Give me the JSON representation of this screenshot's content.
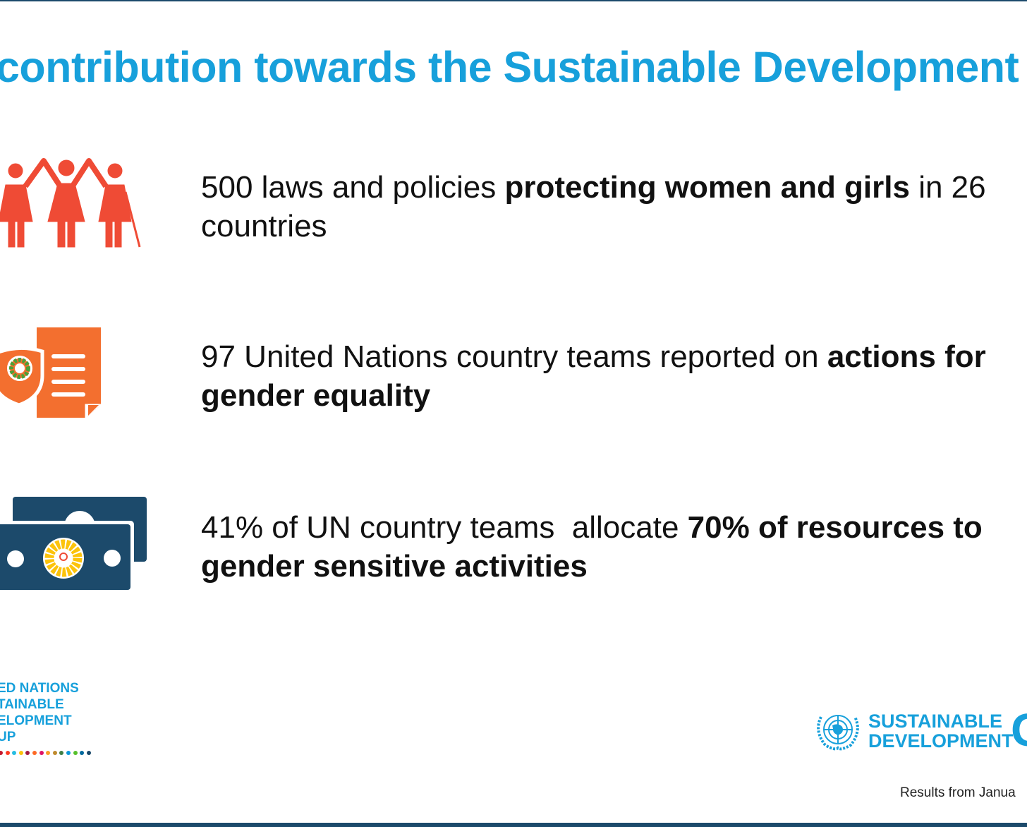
{
  "title": "contribution towards the Sustainable Development G",
  "items": [
    {
      "icon": "women-and-girls-icon",
      "segments": [
        {
          "text": "500 laws and policies ",
          "bold": false
        },
        {
          "text": "protecting women and girls",
          "bold": true
        },
        {
          "text": " in 26 countries",
          "bold": false
        }
      ]
    },
    {
      "icon": "shield-document-icon",
      "segments": [
        {
          "text": "97 United Nations country teams reported on ",
          "bold": false
        },
        {
          "text": "actions for gender equality",
          "bold": true
        }
      ]
    },
    {
      "icon": "money-bills-icon",
      "segments": [
        {
          "text": "41% of UN country teams  allocate ",
          "bold": false
        },
        {
          "text": "70% of resources to gender sensitive activities",
          "bold": true
        }
      ]
    }
  ],
  "logo_left": "ED NATIONS\nTAINABLE\nELOPMENT\nUP",
  "logo_right": "SUSTAINABLE\nDEVELOPMENT",
  "logo_right_letter": "G",
  "footer": "Results from Janua",
  "colors": {
    "title": "#17a0db",
    "people": "#ef4b35",
    "document": "#f36f2f",
    "money": "#1c4a6b",
    "border": "#1c4a6b"
  },
  "sdg_dots": [
    "#e5243b",
    "#dda63a",
    "#4c9f38",
    "#c5192d",
    "#ff3a21",
    "#26bde2",
    "#fcc30b",
    "#a21942",
    "#fd6925",
    "#dd1367",
    "#fd9d24",
    "#bf8b2e",
    "#3f7e44",
    "#0a97d9",
    "#56c02b",
    "#00689d",
    "#19486a"
  ]
}
